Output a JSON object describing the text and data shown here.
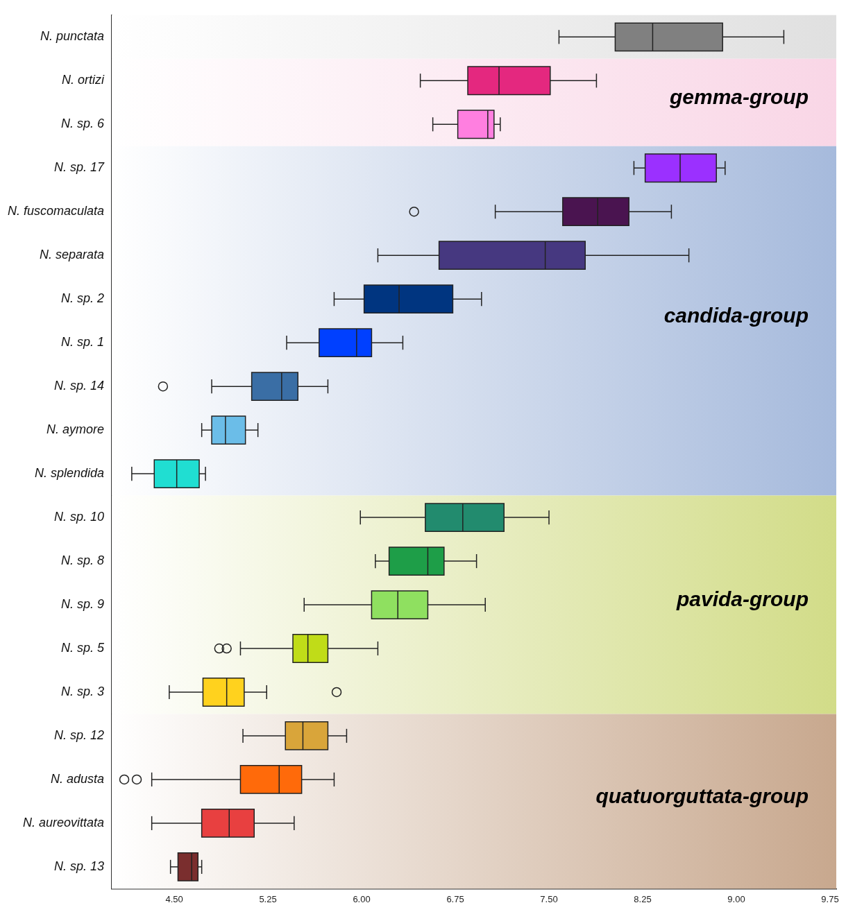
{
  "chart_data": {
    "type": "box",
    "orientation": "horizontal",
    "categories": [
      "N. punctata",
      "N. ortizi",
      "N. sp. 6",
      "N. sp. 17",
      "N. fuscomaculata",
      "N. separata",
      "N. sp. 2",
      "N. sp. 1",
      "N. sp. 14",
      "N. aymore",
      "N. splendida",
      "N. sp. 10",
      "N. sp. 8",
      "N. sp. 9",
      "N. sp. 5",
      "N. sp. 3",
      "N. sp. 12",
      "N. adusta",
      "N. aureovittata",
      "N. sp. 13"
    ],
    "colors": [
      "#808080",
      "#e4287f",
      "#ff7fe0",
      "#9b30ff",
      "#4a1450",
      "#463880",
      "#003580",
      "#0040ff",
      "#3a6ea5",
      "#6bbde8",
      "#20ded2",
      "#228b6e",
      "#1e9e48",
      "#8fe060",
      "#c0dc18",
      "#ffd21e",
      "#d9a53a",
      "#ff6a0a",
      "#e84040",
      "#7a2e2e"
    ],
    "boxes": [
      {
        "low": 7.58,
        "q1": 8.03,
        "median": 8.33,
        "q3": 8.89,
        "high": 9.38
      },
      {
        "low": 6.47,
        "q1": 6.85,
        "median": 7.1,
        "q3": 7.51,
        "high": 7.88
      },
      {
        "low": 6.57,
        "q1": 6.77,
        "median": 7.01,
        "q3": 7.06,
        "high": 7.11
      },
      {
        "low": 8.18,
        "q1": 8.27,
        "median": 8.55,
        "q3": 8.84,
        "high": 8.91
      },
      {
        "low": 7.07,
        "q1": 7.61,
        "median": 7.89,
        "q3": 8.14,
        "high": 8.48,
        "outliers": [
          6.42
        ]
      },
      {
        "low": 6.13,
        "q1": 6.62,
        "median": 7.47,
        "q3": 7.79,
        "high": 8.62
      },
      {
        "low": 5.78,
        "q1": 6.02,
        "median": 6.3,
        "q3": 6.73,
        "high": 6.96
      },
      {
        "low": 5.4,
        "q1": 5.66,
        "median": 5.96,
        "q3": 6.08,
        "high": 6.33
      },
      {
        "low": 4.8,
        "q1": 5.12,
        "median": 5.36,
        "q3": 5.49,
        "high": 5.73,
        "outliers": [
          4.41
        ]
      },
      {
        "low": 4.72,
        "q1": 4.8,
        "median": 4.91,
        "q3": 5.07,
        "high": 5.17
      },
      {
        "low": 4.16,
        "q1": 4.34,
        "median": 4.52,
        "q3": 4.7,
        "high": 4.75
      },
      {
        "low": 5.99,
        "q1": 6.51,
        "median": 6.81,
        "q3": 7.14,
        "high": 7.5
      },
      {
        "low": 6.11,
        "q1": 6.22,
        "median": 6.53,
        "q3": 6.66,
        "high": 6.92
      },
      {
        "low": 5.54,
        "q1": 6.08,
        "median": 6.29,
        "q3": 6.53,
        "high": 6.99
      },
      {
        "low": 5.03,
        "q1": 5.45,
        "median": 5.57,
        "q3": 5.73,
        "high": 6.13,
        "outliers": [
          4.86,
          4.92
        ]
      },
      {
        "low": 4.46,
        "q1": 4.73,
        "median": 4.92,
        "q3": 5.06,
        "high": 5.24,
        "outliers": [
          5.8
        ]
      },
      {
        "low": 5.05,
        "q1": 5.39,
        "median": 5.53,
        "q3": 5.73,
        "high": 5.88
      },
      {
        "low": 4.32,
        "q1": 5.03,
        "median": 5.34,
        "q3": 5.52,
        "high": 5.78,
        "outliers": [
          4.1,
          4.2
        ]
      },
      {
        "low": 4.32,
        "q1": 4.72,
        "median": 4.94,
        "q3": 5.14,
        "high": 5.46
      },
      {
        "low": 4.47,
        "q1": 4.53,
        "median": 4.64,
        "q3": 4.69,
        "high": 4.72
      }
    ],
    "xlim": [
      4,
      9.8
    ],
    "xticks": [
      {
        "value": 4.5,
        "label": "4.50"
      },
      {
        "value": 5.25,
        "label": "5.25"
      },
      {
        "value": 6,
        "label": "6.00"
      },
      {
        "value": 6.75,
        "label": "6.75"
      },
      {
        "value": 7.5,
        "label": "7.50"
      },
      {
        "value": 8.25,
        "label": "8.25"
      },
      {
        "value": 9,
        "label": "9.00"
      },
      {
        "value": 9.75,
        "label": "9.75"
      }
    ],
    "bands": [
      {
        "axis": "y",
        "from": "N. punctata",
        "to": "N. punctata",
        "color": "#e0e0e0"
      },
      {
        "axis": "y",
        "from": "N. ortizi",
        "to": "N. sp. 6",
        "label": "gemma-group",
        "color": "#f9d6e6"
      },
      {
        "axis": "y",
        "from": "N. sp. 17",
        "to": "N. splendida",
        "label": "candida-group",
        "color": "#a6badc"
      },
      {
        "axis": "y",
        "from": "N. sp. 10",
        "to": "N. sp. 3",
        "label": "pavida-group",
        "color": "#d2dc88"
      },
      {
        "axis": "y",
        "from": "N. sp. 12",
        "to": "N. sp. 13",
        "label": "quatuorguttata-group",
        "color": "#c8a88e"
      }
    ],
    "grid": false,
    "legend": false
  }
}
